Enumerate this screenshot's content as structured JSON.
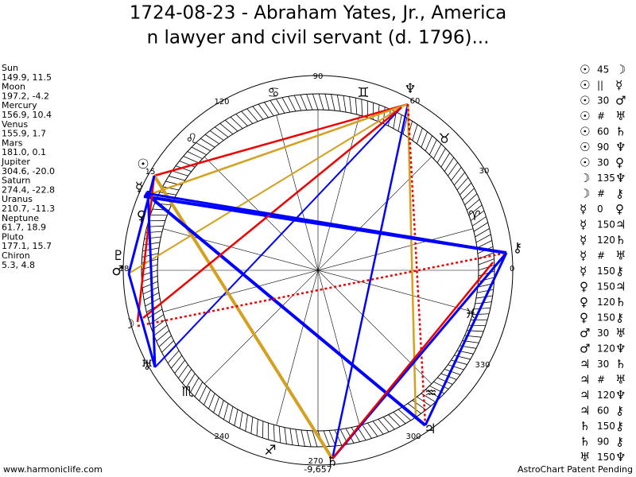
{
  "header": {
    "title_lines": [
      "1724-08-23 - Abraham Yates, Jr., America",
      "n lawyer and civil servant (d. 1796)..."
    ]
  },
  "planets": [
    {
      "name": "Sun",
      "coords": "149.9, 11.5"
    },
    {
      "name": "Moon",
      "coords": "197.2, -4.2"
    },
    {
      "name": "Mercury",
      "coords": "156.9, 10.4"
    },
    {
      "name": "Venus",
      "coords": "155.9, 1.7"
    },
    {
      "name": "Mars",
      "coords": "181.0, 0.1"
    },
    {
      "name": "Jupiter",
      "coords": "304.6, -20.0"
    },
    {
      "name": "Saturn",
      "coords": "274.4, -22.8"
    },
    {
      "name": "Uranus",
      "coords": "210.7, -11.3"
    },
    {
      "name": "Neptune",
      "coords": "61.7, 18.9"
    },
    {
      "name": "Pluto",
      "coords": "177.1, 15.7"
    },
    {
      "name": "Chiron",
      "coords": "5.3, 4.8"
    }
  ],
  "aspects": [
    [
      "☉",
      "45",
      "☽"
    ],
    [
      "☉",
      "||",
      "☿"
    ],
    [
      "☉",
      "30",
      "♂"
    ],
    [
      "☉",
      "#",
      "♅"
    ],
    [
      "☉",
      "60",
      "♄"
    ],
    [
      "☉",
      "90",
      "♆"
    ],
    [
      "☉",
      "30",
      "♀"
    ],
    [
      "☽",
      "135",
      "♆"
    ],
    [
      "☽",
      "#",
      "⚷"
    ],
    [
      "☿",
      "0",
      "♀"
    ],
    [
      "☿",
      "150",
      "♃"
    ],
    [
      "☿",
      "120",
      "♄"
    ],
    [
      "☿",
      "#",
      "♅"
    ],
    [
      "☿",
      "150",
      "⚷"
    ],
    [
      "♀",
      "150",
      "♃"
    ],
    [
      "♀",
      "120",
      "♄"
    ],
    [
      "♀",
      "150",
      "⚷"
    ],
    [
      "♂",
      "30",
      "♅"
    ],
    [
      "♂",
      "120",
      "♆"
    ],
    [
      "♃",
      "30",
      "♄"
    ],
    [
      "♃",
      "#",
      "♅"
    ],
    [
      "♃",
      "120",
      "♆"
    ],
    [
      "♃",
      "60",
      "⚷"
    ],
    [
      "♄",
      "150",
      "⚷"
    ],
    [
      "♄",
      "90",
      "⚷"
    ],
    [
      "♅",
      "150",
      "♆"
    ]
  ],
  "wheel": {
    "degree_labels": [
      "0",
      "30",
      "60",
      "90",
      "120",
      "240",
      "270",
      "300",
      "330"
    ],
    "small_labels": [
      "15",
      "18"
    ],
    "center_label": "-9,657",
    "signs": [
      "♈",
      "♉",
      "♊",
      "♋",
      "♌",
      "♏",
      "♐",
      "♒",
      "♓"
    ],
    "planet_glyphs": [
      "☉",
      "☽",
      "☿",
      "♀",
      "♂",
      "♃",
      "♄",
      "♅",
      "♆",
      "♇",
      "⚷"
    ]
  },
  "footer": {
    "left": "www.harmoniclife.com",
    "right": "AstroChart Patent Pending"
  }
}
